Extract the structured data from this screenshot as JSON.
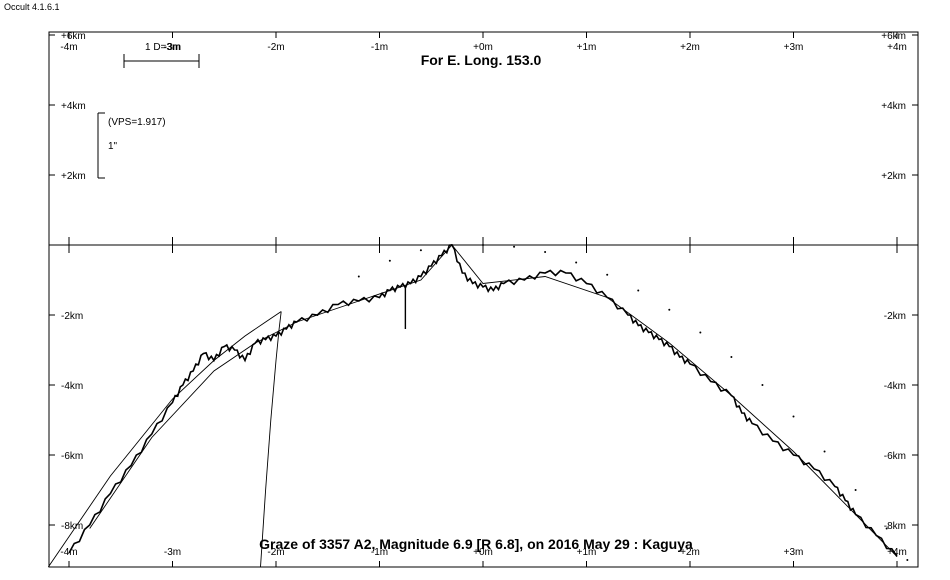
{
  "app": {
    "version_label": "Occult 4.1.6.1"
  },
  "plot": {
    "title_top": "For E. Long. 153.0",
    "title_bottom": "Graze of  3357 A2,  Magnitude 6.9 [R 6.8],  on 2016 May 29  :  Kaguya",
    "scale_bar_label": "1 D=3m",
    "vps_label": "(VPS=1.917)",
    "arcsec_label": "1\"",
    "x_tick_labels": [
      "-4m",
      "-3m",
      "-2m",
      "-1m",
      "+0m",
      "+1m",
      "+2m",
      "+3m",
      "+4m"
    ],
    "y_tick_labels_upper": [
      "+6km",
      "+4km",
      "+2km"
    ],
    "y_tick_labels_lower": [
      "-2km",
      "-4km",
      "-6km",
      "-8km"
    ]
  },
  "chart_data": {
    "type": "line",
    "title": "For E. Long. 153.0",
    "subtitle": "Graze of  3357 A2,  Magnitude 6.9 [R 6.8],  on 2016 May 29  :  Kaguya",
    "xlabel": "",
    "ylabel": "",
    "x_unit": "m",
    "y_unit": "km",
    "xlim": [
      -4.2,
      4.2
    ],
    "ylim": [
      -9.2,
      6.0
    ],
    "x_ticks": [
      -4,
      -3,
      -2,
      -1,
      0,
      1,
      2,
      3,
      4
    ],
    "y_ticks": [
      6,
      4,
      2,
      -2,
      -4,
      -6,
      -8
    ],
    "series": [
      {
        "style": "jagged",
        "x": [
          -4.0,
          -3.8,
          -3.6,
          -3.4,
          -3.2,
          -3.0,
          -2.9,
          -2.8,
          -2.7,
          -2.6,
          -2.5,
          -2.4,
          -2.3,
          -2.2,
          -2.1,
          -2.0,
          -1.9,
          -1.8,
          -1.6,
          -1.4,
          -1.2,
          -1.0,
          -0.9,
          -0.8,
          -0.7,
          -0.6,
          -0.5,
          -0.4,
          -0.3,
          -0.2,
          -0.1,
          0.0,
          0.1,
          0.2,
          0.4,
          0.6,
          0.8,
          1.0,
          1.2,
          1.4,
          1.5,
          1.6,
          1.7,
          1.8,
          1.9,
          2.0,
          2.2,
          2.4,
          2.5,
          2.6,
          2.8,
          3.0,
          3.2,
          3.4,
          3.5,
          3.6,
          3.8,
          4.0
        ],
        "y": [
          -8.8,
          -8.0,
          -7.1,
          -6.3,
          -5.4,
          -4.5,
          -4.0,
          -3.6,
          -3.1,
          -3.3,
          -2.9,
          -3.0,
          -3.3,
          -2.8,
          -2.7,
          -2.6,
          -2.4,
          -2.2,
          -2.0,
          -1.7,
          -1.6,
          -1.5,
          -1.3,
          -1.2,
          -1.1,
          -0.9,
          -0.6,
          -0.3,
          0.0,
          -0.8,
          -1.1,
          -1.2,
          -1.3,
          -1.1,
          -1.0,
          -0.8,
          -0.8,
          -1.1,
          -1.5,
          -2.0,
          -2.3,
          -2.5,
          -2.7,
          -2.9,
          -3.2,
          -3.4,
          -3.9,
          -4.3,
          -4.8,
          -5.1,
          -5.6,
          -6.0,
          -6.4,
          -6.9,
          -7.3,
          -7.7,
          -8.3,
          -8.9
        ]
      },
      {
        "style": "smooth",
        "x": [
          -3.8,
          -3.2,
          -2.6,
          -2.2,
          -1.8,
          -1.2,
          -0.6,
          -0.3,
          0.0,
          0.6,
          1.2,
          1.8,
          2.4,
          3.0,
          3.6,
          4.0
        ],
        "y": [
          -8.1,
          -5.5,
          -3.6,
          -2.8,
          -2.2,
          -1.6,
          -1.0,
          0.0,
          -1.1,
          -0.9,
          -1.5,
          -2.8,
          -4.3,
          -5.9,
          -7.7,
          -8.9
        ]
      },
      {
        "style": "line",
        "x": [
          -4.2,
          -3.6,
          -3.0,
          -2.6,
          -2.3,
          -2.1,
          -1.95
        ],
        "y": [
          -9.2,
          -6.6,
          -4.4,
          -3.3,
          -2.6,
          -2.2,
          -1.9
        ]
      },
      {
        "style": "line",
        "x": [
          -2.15,
          -2.1,
          -2.05,
          -2.0,
          -1.97,
          -1.95
        ],
        "y": [
          -9.2,
          -7.0,
          -5.0,
          -3.3,
          -2.4,
          -1.9
        ]
      },
      {
        "style": "dotted",
        "x": [
          -1.6,
          -1.2,
          -0.9,
          -0.6,
          -0.3,
          0.0,
          0.3,
          0.6,
          0.9,
          1.2,
          1.5,
          1.8,
          2.1,
          2.4,
          2.7,
          3.0,
          3.3,
          3.6,
          3.9,
          4.1
        ],
        "y": [
          -2.0,
          -0.9,
          -0.45,
          -0.15,
          0.0,
          0.0,
          -0.05,
          -0.2,
          -0.5,
          -0.85,
          -1.3,
          -1.85,
          -2.5,
          -3.2,
          -4.0,
          -4.9,
          -5.9,
          -7.0,
          -8.1,
          -9.0
        ]
      }
    ],
    "grid": false,
    "legend": "none"
  }
}
